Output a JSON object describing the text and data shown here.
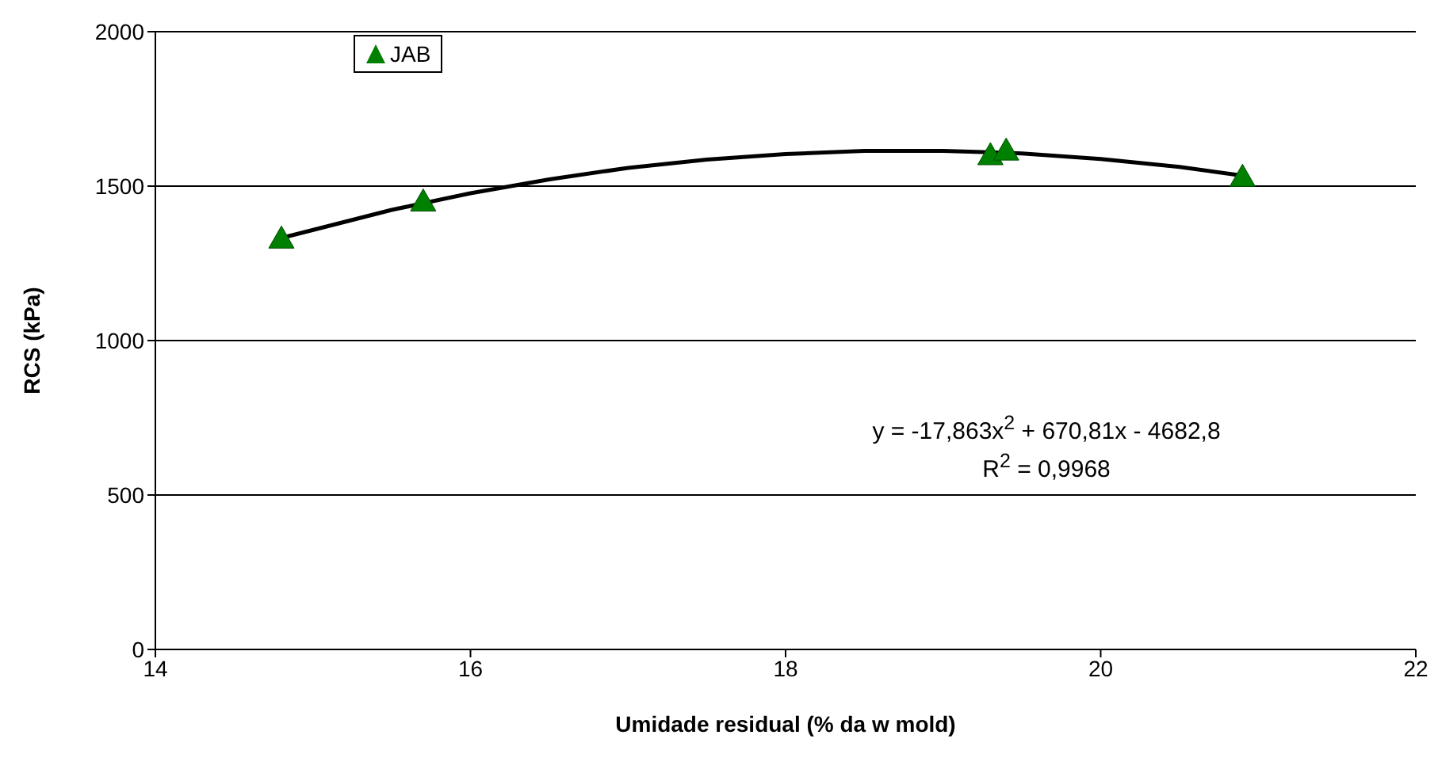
{
  "chart_data": {
    "type": "scatter",
    "xlabel": "Umidade residual (% da w mold)",
    "ylabel": "RCS (kPa)",
    "xlim": [
      14,
      22
    ],
    "xticks": [
      14,
      16,
      18,
      20,
      22
    ],
    "ylim": [
      0,
      2000
    ],
    "yticks": [
      0,
      500,
      1000,
      1500,
      2000
    ],
    "grid": "y",
    "legend": "top left",
    "series": [
      {
        "name": "JAB",
        "marker": "triangle",
        "color": "#008000",
        "x": [
          14.8,
          15.7,
          19.3,
          19.4,
          20.9
        ],
        "values": [
          1330,
          1450,
          1600,
          1615,
          1530
        ]
      },
      {
        "type": "line",
        "color": "#000000",
        "x": [
          14.8,
          15.5,
          16,
          16.5,
          17,
          17.5,
          18,
          18.5,
          19,
          19.5,
          20,
          20.5,
          20.9
        ],
        "values": [
          1332,
          1423,
          1477,
          1522,
          1559,
          1586,
          1604,
          1614,
          1614,
          1606,
          1588,
          1562,
          1534
        ]
      }
    ],
    "annotations": [
      "y = -17,863x$^{2}$ + 670,81x - 4682,8",
      "R$^{2}$ = 0,9968"
    ]
  }
}
